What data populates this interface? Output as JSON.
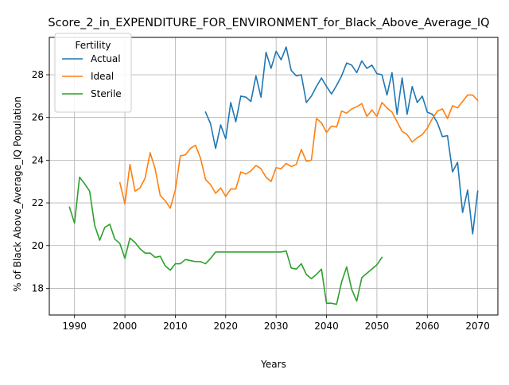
{
  "chart_data": {
    "type": "line",
    "title": "Score_2_in_EXPENDITURE_FOR_ENVIRONMENT_for_Black_Above_Average_IQ",
    "xlabel": "Years",
    "ylabel": "% of Black Above_Average_IQ Population",
    "xlim": [
      1985,
      2074
    ],
    "ylim": [
      16.75,
      29.75
    ],
    "x_ticks": [
      1990,
      2000,
      2010,
      2020,
      2030,
      2040,
      2050,
      2060,
      2070
    ],
    "y_ticks": [
      18,
      20,
      22,
      24,
      26,
      28
    ],
    "grid": true,
    "legend": {
      "title": "Fertility",
      "placement": "top-left"
    },
    "series": [
      {
        "name": "Actual",
        "color": "#1f77b4",
        "x": [
          2016,
          2017,
          2018,
          2019,
          2020,
          2021,
          2022,
          2023,
          2024,
          2025,
          2026,
          2027,
          2028,
          2029,
          2030,
          2031,
          2032,
          2033,
          2034,
          2035,
          2036,
          2037,
          2038,
          2039,
          2040,
          2041,
          2042,
          2043,
          2044,
          2045,
          2046,
          2047,
          2048,
          2049,
          2050,
          2051,
          2052,
          2053,
          2054,
          2055,
          2056,
          2057,
          2058,
          2059,
          2060,
          2061,
          2062,
          2063,
          2064,
          2065,
          2066,
          2067,
          2068,
          2069,
          2070
        ],
        "y": [
          26.25,
          25.7,
          24.55,
          25.65,
          25.0,
          26.7,
          25.8,
          27.0,
          26.95,
          26.75,
          27.95,
          26.95,
          29.05,
          28.3,
          29.1,
          28.7,
          29.3,
          28.2,
          27.95,
          28.0,
          26.7,
          27.0,
          27.45,
          27.85,
          27.45,
          27.1,
          27.5,
          27.95,
          28.55,
          28.45,
          28.1,
          28.65,
          28.3,
          28.45,
          28.05,
          28.0,
          27.05,
          28.1,
          26.15,
          27.85,
          26.15,
          27.45,
          26.7,
          27.0,
          26.25,
          26.15,
          25.75,
          25.1,
          25.15,
          23.45,
          23.9,
          21.55,
          22.6,
          20.55,
          22.55
        ]
      },
      {
        "name": "Ideal",
        "color": "#ff7f0e",
        "x": [
          1999,
          2000,
          2001,
          2002,
          2003,
          2004,
          2005,
          2006,
          2007,
          2008,
          2009,
          2010,
          2011,
          2012,
          2013,
          2014,
          2015,
          2016,
          2017,
          2018,
          2019,
          2020,
          2021,
          2022,
          2023,
          2024,
          2025,
          2026,
          2027,
          2028,
          2029,
          2030,
          2031,
          2032,
          2033,
          2034,
          2035,
          2036,
          2037,
          2038,
          2039,
          2040,
          2041,
          2042,
          2043,
          2044,
          2045,
          2046,
          2047,
          2048,
          2049,
          2050,
          2051,
          2052,
          2053,
          2054,
          2055,
          2056,
          2057,
          2058,
          2059,
          2060,
          2061,
          2062,
          2063,
          2064,
          2065,
          2066,
          2067,
          2068,
          2069,
          2070
        ],
        "y": [
          22.95,
          21.95,
          23.8,
          22.55,
          22.7,
          23.15,
          24.35,
          23.6,
          22.35,
          22.1,
          21.75,
          22.6,
          24.2,
          24.25,
          24.55,
          24.7,
          24.1,
          23.1,
          22.85,
          22.45,
          22.7,
          22.3,
          22.65,
          22.65,
          23.45,
          23.35,
          23.5,
          23.75,
          23.6,
          23.2,
          23.0,
          23.65,
          23.6,
          23.85,
          23.7,
          23.8,
          24.5,
          23.95,
          24.0,
          25.95,
          25.75,
          25.3,
          25.6,
          25.55,
          26.3,
          26.2,
          26.4,
          26.5,
          26.65,
          26.05,
          26.35,
          26.05,
          26.7,
          26.45,
          26.25,
          25.8,
          25.35,
          25.2,
          24.85,
          25.05,
          25.2,
          25.5,
          25.95,
          26.3,
          26.4,
          25.95,
          26.55,
          26.45,
          26.75,
          27.05,
          27.05,
          26.8
        ]
      },
      {
        "name": "Sterile",
        "color": "#2ca02c",
        "x": [
          1989,
          1990,
          1991,
          1992,
          1993,
          1994,
          1995,
          1996,
          1997,
          1998,
          1999,
          2000,
          2001,
          2002,
          2003,
          2004,
          2005,
          2006,
          2007,
          2008,
          2009,
          2010,
          2011,
          2012,
          2013,
          2014,
          2015,
          2016,
          2017,
          2018,
          2019,
          2020,
          2021,
          2022,
          2023,
          2024,
          2025,
          2026,
          2027,
          2028,
          2029,
          2030,
          2031,
          2032,
          2033,
          2034,
          2035,
          2036,
          2037,
          2038,
          2039,
          2040,
          2041,
          2042,
          2043,
          2044,
          2045,
          2046,
          2047,
          2048,
          2049,
          2050,
          2051
        ],
        "y": [
          21.8,
          21.05,
          23.2,
          22.9,
          22.55,
          20.95,
          20.25,
          20.85,
          21.0,
          20.3,
          20.1,
          19.4,
          20.35,
          20.15,
          19.85,
          19.65,
          19.65,
          19.45,
          19.5,
          19.05,
          18.85,
          19.15,
          19.15,
          19.35,
          19.3,
          19.25,
          19.25,
          19.15,
          19.4,
          19.7,
          19.7,
          19.7,
          19.7,
          19.7,
          19.7,
          19.7,
          19.7,
          19.7,
          19.7,
          19.7,
          19.7,
          19.7,
          19.7,
          19.75,
          18.95,
          18.9,
          19.15,
          18.65,
          18.45,
          18.65,
          18.9,
          17.3,
          17.3,
          17.25,
          18.3,
          19.0,
          17.95,
          17.4,
          18.5,
          18.7,
          18.9,
          19.1,
          19.45
        ]
      }
    ]
  }
}
